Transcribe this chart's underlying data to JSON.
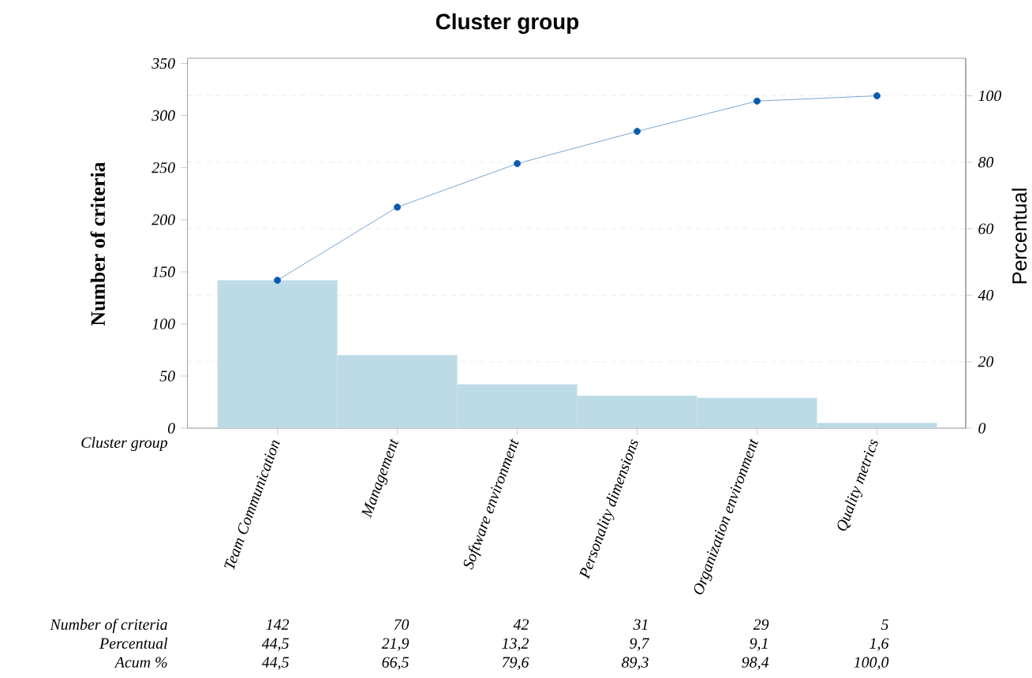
{
  "chart_data": {
    "type": "bar",
    "title": "Cluster group",
    "xlabel": "Cluster group",
    "ylabel": "Number of criteria",
    "y2label": "Percentual",
    "categories": [
      "Team Communication",
      "Management",
      "Software environment",
      "Personality dimensions",
      "Organization environment",
      "Quality metrics"
    ],
    "series": [
      {
        "color": "#bddbe6",
        "values": [
          142,
          70,
          42,
          31,
          29,
          5
        ],
        "value_labels": [
          "142",
          "70",
          "42",
          "31",
          "29",
          "5"
        ]
      },
      {
        "type": "line",
        "axis": "y2",
        "color": "#0a5bb0",
        "marker": "circle",
        "values": [
          44.5,
          66.5,
          79.6,
          89.3,
          98.4,
          100.0
        ],
        "value_labels": [
          "44,5",
          "66,5",
          "79,6",
          "89,3",
          "98,4",
          "100,0"
        ]
      }
    ],
    "annotations": [
      "Number of criteria",
      "Percentual",
      "Acum %",
      "44,5",
      "21,9",
      "13,2",
      "9,7",
      "9,1",
      "1,6"
    ],
    "ylim": [
      0,
      355
    ],
    "yticks": [
      0,
      50,
      100,
      150,
      200,
      250,
      300,
      350
    ],
    "y2lim": [
      0,
      111.3
    ],
    "y2ticks": [
      0,
      20,
      40,
      60,
      80,
      100
    ],
    "grid": true
  }
}
